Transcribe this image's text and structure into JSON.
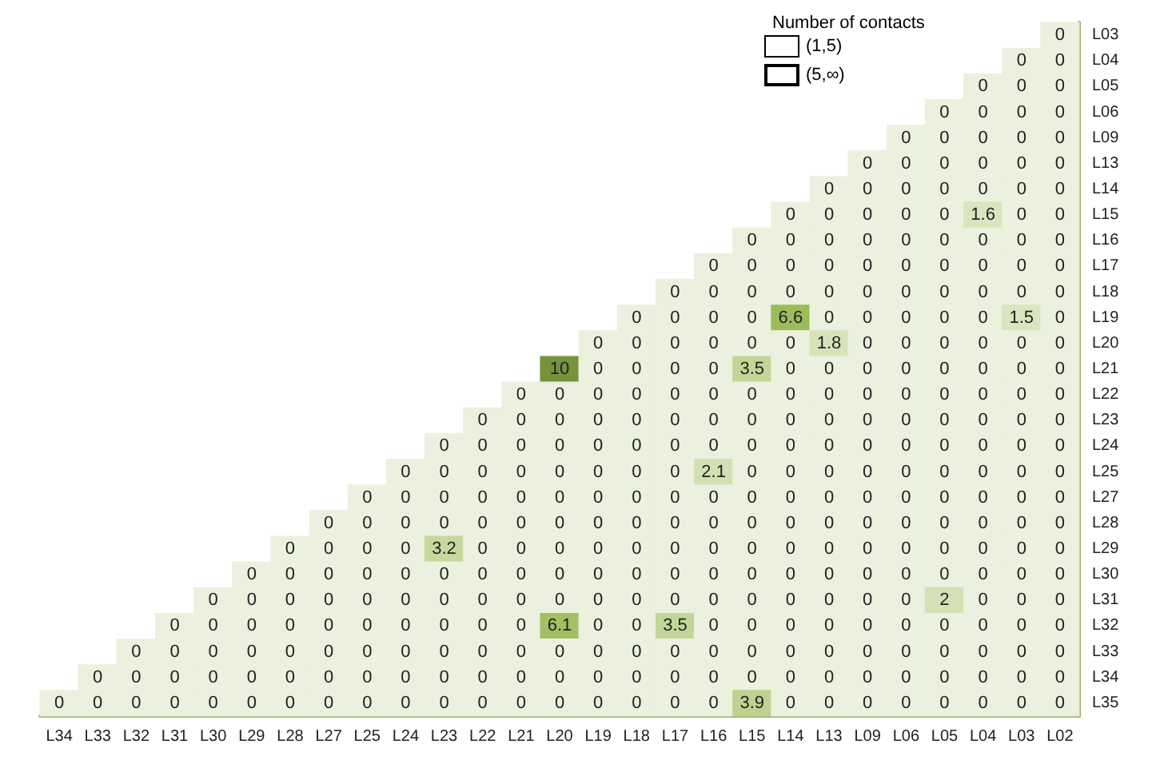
{
  "chart_data": {
    "type": "heatmap",
    "legend_title": "Number of contacts",
    "data_labels": true,
    "categories": [
      "L34",
      "L33",
      "L32",
      "L31",
      "L30",
      "L29",
      "L28",
      "L27",
      "L25",
      "L24",
      "L23",
      "L22",
      "L21",
      "L20",
      "L19",
      "L18",
      "L17",
      "L16",
      "L15",
      "L14",
      "L13",
      "L09",
      "L06",
      "L05",
      "L04",
      "L03",
      "L02"
    ],
    "y_categories": [
      "L03",
      "L04",
      "L05",
      "L06",
      "L09",
      "L13",
      "L14",
      "L15",
      "L16",
      "L17",
      "L18",
      "L19",
      "L20",
      "L21",
      "L22",
      "L23",
      "L24",
      "L25",
      "L27",
      "L28",
      "L29",
      "L30",
      "L31",
      "L32",
      "L33",
      "L34",
      "L35"
    ],
    "cells": [
      [
        null,
        null,
        null,
        null,
        null,
        null,
        null,
        null,
        null,
        null,
        null,
        null,
        null,
        null,
        null,
        null,
        null,
        null,
        null,
        null,
        null,
        null,
        null,
        null,
        null,
        null,
        0
      ],
      [
        null,
        null,
        null,
        null,
        null,
        null,
        null,
        null,
        null,
        null,
        null,
        null,
        null,
        null,
        null,
        null,
        null,
        null,
        null,
        null,
        null,
        null,
        null,
        null,
        null,
        0,
        0
      ],
      [
        null,
        null,
        null,
        null,
        null,
        null,
        null,
        null,
        null,
        null,
        null,
        null,
        null,
        null,
        null,
        null,
        null,
        null,
        null,
        null,
        null,
        null,
        null,
        null,
        0,
        0,
        0
      ],
      [
        null,
        null,
        null,
        null,
        null,
        null,
        null,
        null,
        null,
        null,
        null,
        null,
        null,
        null,
        null,
        null,
        null,
        null,
        null,
        null,
        null,
        null,
        null,
        0,
        0,
        0,
        0
      ],
      [
        null,
        null,
        null,
        null,
        null,
        null,
        null,
        null,
        null,
        null,
        null,
        null,
        null,
        null,
        null,
        null,
        null,
        null,
        null,
        null,
        null,
        null,
        0,
        0,
        0,
        0,
        0
      ],
      [
        null,
        null,
        null,
        null,
        null,
        null,
        null,
        null,
        null,
        null,
        null,
        null,
        null,
        null,
        null,
        null,
        null,
        null,
        null,
        null,
        null,
        0,
        0,
        0,
        0,
        0,
        0
      ],
      [
        null,
        null,
        null,
        null,
        null,
        null,
        null,
        null,
        null,
        null,
        null,
        null,
        null,
        null,
        null,
        null,
        null,
        null,
        null,
        null,
        0,
        0,
        0,
        0,
        0,
        0,
        0
      ],
      [
        null,
        null,
        null,
        null,
        null,
        null,
        null,
        null,
        null,
        null,
        null,
        null,
        null,
        null,
        null,
        null,
        null,
        null,
        null,
        0,
        0,
        0,
        0,
        0,
        1.6,
        0,
        0
      ],
      [
        null,
        null,
        null,
        null,
        null,
        null,
        null,
        null,
        null,
        null,
        null,
        null,
        null,
        null,
        null,
        null,
        null,
        null,
        0,
        0,
        0,
        0,
        0,
        0,
        0,
        0,
        0
      ],
      [
        null,
        null,
        null,
        null,
        null,
        null,
        null,
        null,
        null,
        null,
        null,
        null,
        null,
        null,
        null,
        null,
        null,
        0,
        0,
        0,
        0,
        0,
        0,
        0,
        0,
        0,
        0
      ],
      [
        null,
        null,
        null,
        null,
        null,
        null,
        null,
        null,
        null,
        null,
        null,
        null,
        null,
        null,
        null,
        null,
        0,
        0,
        0,
        0,
        0,
        0,
        0,
        0,
        0,
        0,
        0
      ],
      [
        null,
        null,
        null,
        null,
        null,
        null,
        null,
        null,
        null,
        null,
        null,
        null,
        null,
        null,
        null,
        0,
        0,
        0,
        0,
        6.6,
        0,
        0,
        0,
        0,
        0,
        1.5,
        0
      ],
      [
        null,
        null,
        null,
        null,
        null,
        null,
        null,
        null,
        null,
        null,
        null,
        null,
        null,
        null,
        0,
        0,
        0,
        0,
        0,
        0,
        1.8,
        0,
        0,
        0,
        0,
        0,
        0
      ],
      [
        null,
        null,
        null,
        null,
        null,
        null,
        null,
        null,
        null,
        null,
        null,
        null,
        null,
        10,
        0,
        0,
        0,
        0,
        3.5,
        0,
        0,
        0,
        0,
        0,
        0,
        0,
        0
      ],
      [
        null,
        null,
        null,
        null,
        null,
        null,
        null,
        null,
        null,
        null,
        null,
        null,
        0,
        0,
        0,
        0,
        0,
        0,
        0,
        0,
        0,
        0,
        0,
        0,
        0,
        0,
        0
      ],
      [
        null,
        null,
        null,
        null,
        null,
        null,
        null,
        null,
        null,
        null,
        null,
        0,
        0,
        0,
        0,
        0,
        0,
        0,
        0,
        0,
        0,
        0,
        0,
        0,
        0,
        0,
        0
      ],
      [
        null,
        null,
        null,
        null,
        null,
        null,
        null,
        null,
        null,
        null,
        0,
        0,
        0,
        0,
        0,
        0,
        0,
        0,
        0,
        0,
        0,
        0,
        0,
        0,
        0,
        0,
        0
      ],
      [
        null,
        null,
        null,
        null,
        null,
        null,
        null,
        null,
        null,
        0,
        0,
        0,
        0,
        0,
        0,
        0,
        0,
        2.1,
        0,
        0,
        0,
        0,
        0,
        0,
        0,
        0,
        0
      ],
      [
        null,
        null,
        null,
        null,
        null,
        null,
        null,
        null,
        0,
        0,
        0,
        0,
        0,
        0,
        0,
        0,
        0,
        0,
        0,
        0,
        0,
        0,
        0,
        0,
        0,
        0,
        0
      ],
      [
        null,
        null,
        null,
        null,
        null,
        null,
        null,
        0,
        0,
        0,
        0,
        0,
        0,
        0,
        0,
        0,
        0,
        0,
        0,
        0,
        0,
        0,
        0,
        0,
        0,
        0,
        0
      ],
      [
        null,
        null,
        null,
        null,
        null,
        null,
        0,
        0,
        0,
        0,
        3.2,
        0,
        0,
        0,
        0,
        0,
        0,
        0,
        0,
        0,
        0,
        0,
        0,
        0,
        0,
        0,
        0
      ],
      [
        null,
        null,
        null,
        null,
        null,
        0,
        0,
        0,
        0,
        0,
        0,
        0,
        0,
        0,
        0,
        0,
        0,
        0,
        0,
        0,
        0,
        0,
        0,
        0,
        0,
        0,
        0
      ],
      [
        null,
        null,
        null,
        null,
        0,
        0,
        0,
        0,
        0,
        0,
        0,
        0,
        0,
        0,
        0,
        0,
        0,
        0,
        0,
        0,
        0,
        0,
        0,
        2,
        0,
        0,
        0
      ],
      [
        null,
        null,
        null,
        0,
        0,
        0,
        0,
        0,
        0,
        0,
        0,
        0,
        0,
        6.1,
        0,
        0,
        3.5,
        0,
        0,
        0,
        0,
        0,
        0,
        0,
        0,
        0,
        0
      ],
      [
        null,
        null,
        0,
        0,
        0,
        0,
        0,
        0,
        0,
        0,
        0,
        0,
        0,
        0,
        0,
        0,
        0,
        0,
        0,
        0,
        0,
        0,
        0,
        0,
        0,
        0,
        0
      ],
      [
        null,
        0,
        0,
        0,
        0,
        0,
        0,
        0,
        0,
        0,
        0,
        0,
        0,
        0,
        0,
        0,
        0,
        0,
        0,
        0,
        0,
        0,
        0,
        0,
        0,
        0,
        0
      ],
      [
        0,
        0,
        0,
        0,
        0,
        0,
        0,
        0,
        0,
        0,
        0,
        0,
        0,
        0,
        0,
        0,
        0,
        0,
        3.9,
        0,
        0,
        0,
        0,
        0,
        0,
        0,
        0
      ]
    ],
    "annotations": [
      "(1,5)",
      "(5,∞)"
    ]
  }
}
